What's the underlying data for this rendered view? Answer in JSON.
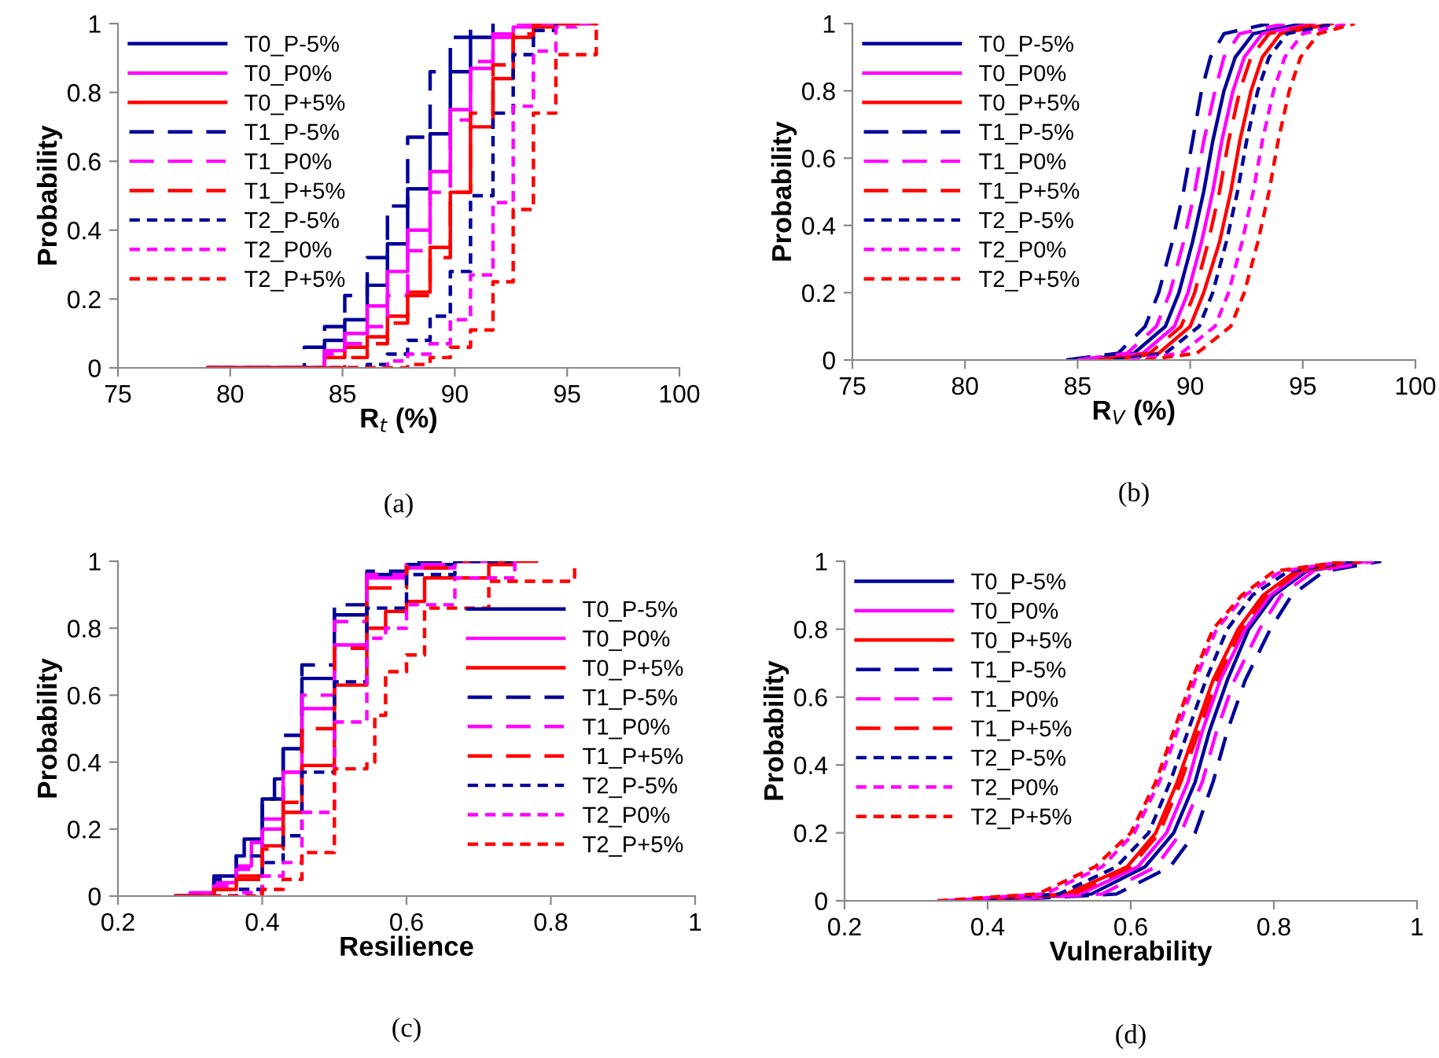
{
  "chart_data": [
    {
      "type": "step",
      "xlabel": "R$_{t}$ (%)",
      "ylabel": "Probability",
      "annotations": [
        "(a)"
      ],
      "xlim": [
        75,
        100
      ],
      "xticks": [
        75,
        80,
        85,
        90,
        95,
        100
      ],
      "ylim": [
        0,
        1
      ],
      "yticks": [
        0,
        0.2,
        0.4,
        0.6,
        0.8,
        1
      ],
      "grid": false,
      "legend": "top left",
      "marker": "none",
      "series": [
        {
          "name": "T0_P-5%",
          "color": "#000099",
          "line_style": "solid",
          "x": [
            79,
            84.2,
            85.1,
            86.1,
            87.0,
            87.9,
            88.9,
            89.8,
            90.7,
            91.7
          ],
          "values": [
            0,
            0.08,
            0.14,
            0.24,
            0.36,
            0.52,
            0.68,
            0.86,
            0.96,
            1
          ]
        },
        {
          "name": "T0_P0%",
          "color": "#ff00ff",
          "line_style": "solid",
          "x": [
            79,
            84.2,
            85.1,
            86.1,
            87.0,
            87.9,
            88.9,
            89.8,
            90.7,
            91.7,
            92.6,
            93.5,
            96.3
          ],
          "values": [
            0,
            0.05,
            0.1,
            0.18,
            0.28,
            0.4,
            0.57,
            0.75,
            0.87,
            0.96,
            0.99,
            1,
            1
          ]
        },
        {
          "name": "T0_P+5%",
          "color": "#ff0000",
          "line_style": "solid",
          "x": [
            79,
            84.2,
            85.1,
            86.1,
            87.0,
            87.9,
            88.9,
            89.8,
            90.7,
            91.7,
            92.6,
            93.5,
            94.5,
            96.3
          ],
          "values": [
            0,
            0.03,
            0.06,
            0.09,
            0.15,
            0.22,
            0.35,
            0.51,
            0.7,
            0.84,
            0.96,
            0.99,
            1,
            1
          ]
        },
        {
          "name": "T1_P-5%",
          "color": "#000099",
          "line_style": "dashed",
          "x": [
            79,
            83.3,
            84.2,
            85.1,
            86.1,
            87.0,
            87.9,
            88.9,
            89.8,
            90.7
          ],
          "values": [
            0,
            0.06,
            0.12,
            0.21,
            0.32,
            0.47,
            0.67,
            0.86,
            0.96,
            1
          ]
        },
        {
          "name": "T1_P0%",
          "color": "#ff00ff",
          "line_style": "dashed",
          "x": [
            79,
            84.2,
            85.1,
            86.1,
            87.0,
            87.9,
            88.9,
            89.8,
            90.7,
            91.7,
            92.6,
            96.3
          ],
          "values": [
            0,
            0.04,
            0.07,
            0.12,
            0.21,
            0.34,
            0.51,
            0.72,
            0.89,
            0.97,
            1,
            1
          ]
        },
        {
          "name": "T1_P+5%",
          "color": "#ff0000",
          "line_style": "dashed",
          "x": [
            79,
            85.1,
            86.1,
            87.0,
            87.9,
            88.9,
            89.8,
            90.7,
            91.7,
            92.6,
            93.5,
            96.3
          ],
          "values": [
            0,
            0.03,
            0.07,
            0.13,
            0.21,
            0.32,
            0.51,
            0.74,
            0.88,
            0.97,
            1,
            1
          ]
        },
        {
          "name": "T2_P-5%",
          "color": "#000099",
          "line_style": "dotted",
          "x": [
            79,
            86.1,
            87.0,
            87.9,
            88.9,
            89.8,
            90.7,
            91.7,
            92.6,
            93.5,
            94.5
          ],
          "values": [
            0,
            0.01,
            0.04,
            0.08,
            0.15,
            0.28,
            0.5,
            0.74,
            0.91,
            0.98,
            1
          ]
        },
        {
          "name": "T2_P0%",
          "color": "#ff00ff",
          "line_style": "dotted",
          "x": [
            79,
            87.0,
            87.9,
            88.9,
            89.8,
            90.7,
            91.7,
            92.6,
            93.5,
            94.5,
            95.4,
            96.3
          ],
          "values": [
            0,
            0.02,
            0.04,
            0.07,
            0.14,
            0.27,
            0.48,
            0.76,
            0.92,
            0.99,
            1,
            1
          ]
        },
        {
          "name": "T2_P+5%",
          "color": "#ff0000",
          "line_style": "dotted",
          "x": [
            79,
            87.9,
            88.9,
            89.8,
            90.7,
            91.7,
            92.6,
            93.5,
            94.5,
            96.3
          ],
          "values": [
            0,
            0.01,
            0.03,
            0.06,
            0.11,
            0.25,
            0.46,
            0.74,
            0.91,
            1
          ]
        }
      ]
    },
    {
      "type": "line",
      "xlabel": "R$_{V}$ (%)",
      "ylabel": "Probability",
      "annotations": [
        "(b)"
      ],
      "xlim": [
        75,
        100
      ],
      "xticks": [
        75,
        80,
        85,
        90,
        95,
        100
      ],
      "ylim": [
        0,
        1
      ],
      "yticks": [
        0,
        0.2,
        0.4,
        0.6,
        0.8,
        1
      ],
      "grid": false,
      "legend": "top left",
      "marker": "none",
      "series": [
        {
          "name": "T0_P-5%",
          "color": "#000099",
          "line_style": "solid",
          "x": [
            85.3,
            87.5,
            88.9,
            89.5,
            90.1,
            90.6,
            91.0,
            91.5,
            92.0,
            92.8,
            95.0
          ],
          "values": [
            0,
            0.02,
            0.1,
            0.2,
            0.35,
            0.5,
            0.65,
            0.8,
            0.9,
            0.97,
            1
          ]
        },
        {
          "name": "T0_P0%",
          "color": "#ff00ff",
          "line_style": "solid",
          "x": [
            85.6,
            87.9,
            89.3,
            89.9,
            90.5,
            91.0,
            91.4,
            91.9,
            92.4,
            93.2,
            95.5
          ],
          "values": [
            0,
            0.02,
            0.1,
            0.2,
            0.35,
            0.5,
            0.65,
            0.8,
            0.9,
            0.97,
            1
          ]
        },
        {
          "name": "T0_P+5%",
          "color": "#ff0000",
          "line_style": "solid",
          "x": [
            86.3,
            88.6,
            90.0,
            90.6,
            91.3,
            91.8,
            92.2,
            92.7,
            93.2,
            94.0,
            96.3
          ],
          "values": [
            0,
            0.02,
            0.1,
            0.2,
            0.35,
            0.5,
            0.65,
            0.8,
            0.9,
            0.97,
            1
          ]
        },
        {
          "name": "T1_P-5%",
          "color": "#000099",
          "line_style": "dashed",
          "x": [
            84.5,
            86.8,
            88.0,
            88.6,
            89.2,
            89.7,
            90.1,
            90.5,
            90.9,
            91.5,
            93.5
          ],
          "values": [
            0,
            0.02,
            0.1,
            0.2,
            0.35,
            0.5,
            0.65,
            0.8,
            0.9,
            0.97,
            1
          ]
        },
        {
          "name": "T1_P0%",
          "color": "#ff00ff",
          "line_style": "dashed",
          "x": [
            85.0,
            87.2,
            88.5,
            89.1,
            89.7,
            90.2,
            90.6,
            91.1,
            91.5,
            92.2,
            94.2
          ],
          "values": [
            0,
            0.02,
            0.1,
            0.2,
            0.35,
            0.5,
            0.65,
            0.8,
            0.9,
            0.97,
            1
          ]
        },
        {
          "name": "T1_P+5%",
          "color": "#ff0000",
          "line_style": "dashed",
          "x": [
            85.9,
            88.2,
            89.6,
            90.2,
            90.8,
            91.3,
            91.7,
            92.2,
            92.7,
            93.5,
            95.8
          ],
          "values": [
            0,
            0.02,
            0.1,
            0.2,
            0.35,
            0.5,
            0.65,
            0.8,
            0.9,
            0.97,
            1
          ]
        },
        {
          "name": "T2_P-5%",
          "color": "#000099",
          "line_style": "dotted",
          "x": [
            86.6,
            88.9,
            90.4,
            91.0,
            91.6,
            92.1,
            92.5,
            93.0,
            93.5,
            94.3,
            96.5
          ],
          "values": [
            0,
            0.02,
            0.1,
            0.2,
            0.35,
            0.5,
            0.65,
            0.8,
            0.9,
            0.97,
            1
          ]
        },
        {
          "name": "T2_P0%",
          "color": "#ff00ff",
          "line_style": "dotted",
          "x": [
            87.3,
            89.6,
            91.1,
            91.7,
            92.3,
            92.8,
            93.2,
            93.7,
            94.2,
            95.0,
            97.0
          ],
          "values": [
            0,
            0.02,
            0.1,
            0.2,
            0.35,
            0.5,
            0.65,
            0.8,
            0.9,
            0.97,
            1
          ]
        },
        {
          "name": "T2_P+5%",
          "color": "#ff0000",
          "line_style": "dotted",
          "x": [
            88.0,
            90.3,
            91.8,
            92.4,
            93.0,
            93.5,
            93.9,
            94.4,
            94.9,
            95.7,
            97.3
          ],
          "values": [
            0,
            0.02,
            0.1,
            0.2,
            0.35,
            0.5,
            0.65,
            0.8,
            0.9,
            0.97,
            1
          ]
        }
      ]
    },
    {
      "type": "step",
      "xlabel": "Resilience",
      "ylabel": "Probability",
      "annotations": [
        "(c)"
      ],
      "xlim": [
        0.2,
        1
      ],
      "xticks": [
        0.2,
        0.4,
        0.6,
        0.8,
        1
      ],
      "ylim": [
        0,
        1
      ],
      "yticks": [
        0,
        0.2,
        0.4,
        0.6,
        0.8,
        1
      ],
      "grid": false,
      "legend": "right",
      "marker": "none",
      "series": [
        {
          "name": "T0_P-5%",
          "color": "#000099",
          "line_style": "solid",
          "x": [
            0.28,
            0.333,
            0.364,
            0.375,
            0.4,
            0.417,
            0.429,
            0.455,
            0.5,
            0.545,
            0.6,
            0.667,
            0.75
          ],
          "values": [
            0,
            0.06,
            0.12,
            0.17,
            0.29,
            0.35,
            0.44,
            0.65,
            0.84,
            0.96,
            0.99,
            1,
            1
          ]
        },
        {
          "name": "T0_P0%",
          "color": "#ff00ff",
          "line_style": "solid",
          "x": [
            0.28,
            0.3,
            0.333,
            0.364,
            0.385,
            0.4,
            0.429,
            0.455,
            0.5,
            0.545,
            0.6,
            0.667,
            0.75
          ],
          "values": [
            0,
            0.01,
            0.04,
            0.09,
            0.16,
            0.23,
            0.37,
            0.56,
            0.75,
            0.95,
            0.98,
            1,
            1
          ]
        },
        {
          "name": "T0_P+5%",
          "color": "#ff0000",
          "line_style": "solid",
          "x": [
            0.28,
            0.333,
            0.364,
            0.4,
            0.429,
            0.455,
            0.5,
            0.545,
            0.571,
            0.6,
            0.625,
            0.714,
            0.75,
            0.78
          ],
          "values": [
            0,
            0.02,
            0.06,
            0.15,
            0.25,
            0.39,
            0.63,
            0.8,
            0.85,
            0.88,
            0.95,
            0.99,
            1,
            1
          ]
        },
        {
          "name": "T1_P-5%",
          "color": "#000099",
          "line_style": "dashed",
          "x": [
            0.28,
            0.333,
            0.364,
            0.4,
            0.429,
            0.455,
            0.5,
            0.545,
            0.6,
            0.667
          ],
          "values": [
            0,
            0.05,
            0.12,
            0.29,
            0.48,
            0.69,
            0.87,
            0.97,
            1,
            1
          ]
        },
        {
          "name": "T1_P0%",
          "color": "#ff00ff",
          "line_style": "dashed",
          "x": [
            0.28,
            0.333,
            0.364,
            0.4,
            0.429,
            0.455,
            0.5,
            0.545,
            0.6,
            0.667,
            0.75
          ],
          "values": [
            0,
            0.03,
            0.08,
            0.2,
            0.37,
            0.6,
            0.82,
            0.96,
            0.99,
            1,
            1
          ]
        },
        {
          "name": "T1_P+5%",
          "color": "#ff0000",
          "line_style": "dashed",
          "x": [
            0.28,
            0.333,
            0.364,
            0.4,
            0.429,
            0.455,
            0.5,
            0.545,
            0.6,
            0.667,
            0.75
          ],
          "values": [
            0,
            0.02,
            0.05,
            0.14,
            0.28,
            0.5,
            0.74,
            0.92,
            0.98,
            1,
            1
          ]
        },
        {
          "name": "T2_P-5%",
          "color": "#000099",
          "line_style": "dotted",
          "x": [
            0.28,
            0.364,
            0.4,
            0.429,
            0.455,
            0.5,
            0.545,
            0.6,
            0.667,
            0.75
          ],
          "values": [
            0,
            0.02,
            0.1,
            0.18,
            0.37,
            0.64,
            0.86,
            0.96,
            1,
            1
          ]
        },
        {
          "name": "T2_P0%",
          "color": "#ff00ff",
          "line_style": "dotted",
          "x": [
            0.28,
            0.364,
            0.4,
            0.429,
            0.455,
            0.5,
            0.545,
            0.571,
            0.6,
            0.667,
            0.75
          ],
          "values": [
            0,
            0.01,
            0.06,
            0.1,
            0.25,
            0.52,
            0.77,
            0.8,
            0.87,
            0.95,
            1
          ]
        },
        {
          "name": "T2_P+5%",
          "color": "#ff0000",
          "line_style": "dotted",
          "x": [
            0.28,
            0.4,
            0.429,
            0.455,
            0.5,
            0.545,
            0.556,
            0.571,
            0.6,
            0.625,
            0.714,
            0.833
          ],
          "values": [
            0,
            0.02,
            0.05,
            0.13,
            0.38,
            0.4,
            0.54,
            0.67,
            0.72,
            0.86,
            0.94,
            1
          ]
        }
      ]
    },
    {
      "type": "line",
      "xlabel": "Vulnerability",
      "ylabel": "Probability",
      "annotations": [
        "(d)"
      ],
      "xlim": [
        0.2,
        1
      ],
      "xticks": [
        0.2,
        0.4,
        0.6,
        0.8,
        1
      ],
      "ylim": [
        0,
        1
      ],
      "yticks": [
        0,
        0.2,
        0.4,
        0.6,
        0.8,
        1
      ],
      "grid": false,
      "legend": "top left",
      "marker": "none",
      "series": [
        {
          "name": "T0_P-5%",
          "color": "#000099",
          "line_style": "solid",
          "x": [
            0.38,
            0.545,
            0.62,
            0.66,
            0.69,
            0.71,
            0.735,
            0.765,
            0.8,
            0.845,
            0.93
          ],
          "values": [
            0,
            0.02,
            0.1,
            0.2,
            0.35,
            0.5,
            0.65,
            0.8,
            0.9,
            0.97,
            1
          ]
        },
        {
          "name": "T0_P0%",
          "color": "#ff00ff",
          "line_style": "solid",
          "x": [
            0.37,
            0.53,
            0.61,
            0.65,
            0.68,
            0.7,
            0.725,
            0.76,
            0.795,
            0.84,
            0.93
          ],
          "values": [
            0,
            0.02,
            0.1,
            0.2,
            0.35,
            0.5,
            0.65,
            0.8,
            0.9,
            0.97,
            1
          ]
        },
        {
          "name": "T0_P+5%",
          "color": "#ff0000",
          "line_style": "solid",
          "x": [
            0.36,
            0.51,
            0.595,
            0.635,
            0.665,
            0.69,
            0.715,
            0.75,
            0.785,
            0.83,
            0.92
          ],
          "values": [
            0,
            0.02,
            0.1,
            0.2,
            0.35,
            0.5,
            0.65,
            0.8,
            0.9,
            0.97,
            1
          ]
        },
        {
          "name": "T1_P-5%",
          "color": "#000099",
          "line_style": "dashed",
          "x": [
            0.4,
            0.58,
            0.655,
            0.69,
            0.715,
            0.735,
            0.76,
            0.795,
            0.825,
            0.87,
            0.95
          ],
          "values": [
            0,
            0.02,
            0.1,
            0.2,
            0.35,
            0.5,
            0.65,
            0.8,
            0.9,
            0.97,
            1
          ]
        },
        {
          "name": "T1_P0%",
          "color": "#ff00ff",
          "line_style": "dashed",
          "x": [
            0.39,
            0.56,
            0.635,
            0.67,
            0.7,
            0.72,
            0.745,
            0.78,
            0.81,
            0.855,
            0.94
          ],
          "values": [
            0,
            0.02,
            0.1,
            0.2,
            0.35,
            0.5,
            0.65,
            0.8,
            0.9,
            0.97,
            1
          ]
        },
        {
          "name": "T1_P+5%",
          "color": "#ff0000",
          "line_style": "dashed",
          "x": [
            0.36,
            0.52,
            0.6,
            0.64,
            0.67,
            0.695,
            0.72,
            0.755,
            0.79,
            0.835,
            0.92
          ],
          "values": [
            0,
            0.02,
            0.1,
            0.2,
            0.35,
            0.5,
            0.65,
            0.8,
            0.9,
            0.97,
            1
          ]
        },
        {
          "name": "T2_P-5%",
          "color": "#000099",
          "line_style": "dotted",
          "x": [
            0.35,
            0.5,
            0.58,
            0.625,
            0.655,
            0.68,
            0.705,
            0.735,
            0.77,
            0.82,
            0.91
          ],
          "values": [
            0,
            0.02,
            0.1,
            0.2,
            0.35,
            0.5,
            0.65,
            0.8,
            0.9,
            0.97,
            1
          ]
        },
        {
          "name": "T2_P0%",
          "color": "#ff00ff",
          "line_style": "dotted",
          "x": [
            0.34,
            0.48,
            0.56,
            0.605,
            0.64,
            0.665,
            0.69,
            0.72,
            0.76,
            0.81,
            0.9
          ],
          "values": [
            0,
            0.02,
            0.1,
            0.2,
            0.35,
            0.5,
            0.65,
            0.8,
            0.9,
            0.97,
            1
          ]
        },
        {
          "name": "T2_P+5%",
          "color": "#ff0000",
          "line_style": "dotted",
          "x": [
            0.33,
            0.47,
            0.55,
            0.6,
            0.635,
            0.66,
            0.685,
            0.715,
            0.755,
            0.8,
            0.9
          ],
          "values": [
            0,
            0.02,
            0.1,
            0.2,
            0.35,
            0.5,
            0.65,
            0.8,
            0.9,
            0.97,
            1
          ]
        }
      ]
    }
  ]
}
